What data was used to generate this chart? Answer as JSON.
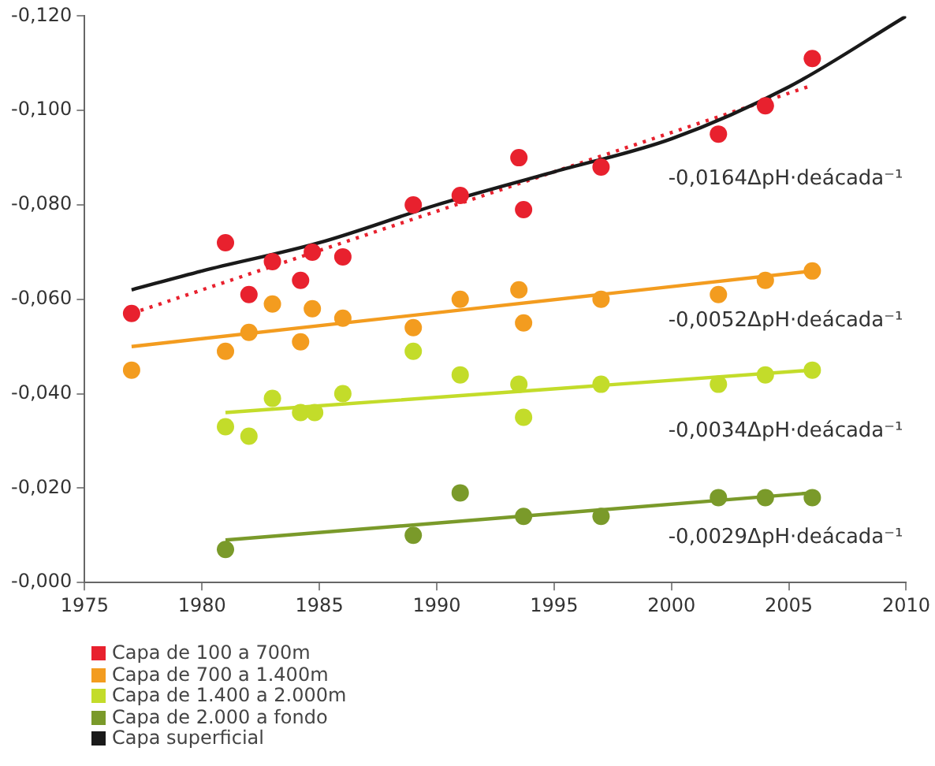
{
  "chart_data": {
    "type": "scatter",
    "xlim": [
      1975,
      2010
    ],
    "xticks": [
      1975,
      1980,
      1985,
      1990,
      1995,
      2000,
      2005,
      2010
    ],
    "ylim": [
      0,
      -0.12
    ],
    "yticks": [
      {
        "value": 0,
        "label": "-0,000"
      },
      {
        "value": -0.02,
        "label": "-0,020"
      },
      {
        "value": -0.04,
        "label": "-0,040"
      },
      {
        "value": -0.06,
        "label": "-0,060"
      },
      {
        "value": -0.08,
        "label": "-0,080"
      },
      {
        "value": -0.1,
        "label": "-0,100"
      },
      {
        "value": -0.12,
        "label": "-0,120"
      }
    ],
    "grid": false,
    "legend": "bottom left",
    "marker": "circle",
    "series": [
      {
        "name": "Capa de 100 a 700m",
        "color": "#e8212e",
        "x": [
          1977,
          1981,
          1982,
          1983,
          1984.2,
          1984.7,
          1986,
          1989,
          1991,
          1993.5,
          1993.7,
          1997,
          2002,
          2004,
          2006
        ],
        "values": [
          -0.057,
          -0.072,
          -0.061,
          -0.068,
          -0.064,
          -0.07,
          -0.069,
          -0.08,
          -0.082,
          -0.09,
          -0.079,
          -0.088,
          -0.095,
          -0.101,
          -0.111
        ]
      },
      {
        "name": "Capa de 700 a 1.400m",
        "color": "#f39c1f",
        "x": [
          1977,
          1981,
          1982,
          1983,
          1984.2,
          1984.7,
          1986,
          1989,
          1991,
          1993.5,
          1993.7,
          1997,
          2002,
          2004,
          2006
        ],
        "values": [
          -0.045,
          -0.049,
          -0.053,
          -0.059,
          -0.051,
          -0.058,
          -0.056,
          -0.054,
          -0.06,
          -0.062,
          -0.055,
          -0.06,
          -0.061,
          -0.064,
          -0.066
        ]
      },
      {
        "name": "Capa de 1.400 a 2.000m",
        "color": "#c3dc2a",
        "x": [
          1981,
          1982,
          1983,
          1984.2,
          1984.8,
          1986,
          1989,
          1991,
          1993.5,
          1993.7,
          1997,
          2002,
          2004,
          2006
        ],
        "values": [
          -0.033,
          -0.031,
          -0.039,
          -0.036,
          -0.036,
          -0.04,
          -0.049,
          -0.044,
          -0.042,
          -0.035,
          -0.042,
          -0.042,
          -0.044,
          -0.045
        ]
      },
      {
        "name": "Capa de 2.000 a fondo",
        "color": "#7a9a2a",
        "x": [
          1981,
          1989,
          1991,
          1993.7,
          1997,
          2002,
          2004,
          2006
        ],
        "values": [
          -0.007,
          -0.01,
          -0.019,
          -0.014,
          -0.014,
          -0.018,
          -0.018,
          -0.018
        ]
      },
      {
        "name": "Capa superficial",
        "type": "line",
        "marker": "none",
        "color": "#1a1a1a",
        "x": [
          1977,
          1980,
          1985,
          1990,
          1995,
          2000,
          2005,
          2010
        ],
        "values": [
          -0.062,
          -0.066,
          -0.072,
          -0.08,
          -0.087,
          -0.094,
          -0.105,
          -0.12
        ]
      },
      {
        "type": "line",
        "marker": "none",
        "line_style": "dotted",
        "color": "#e8212e",
        "x": [
          1977,
          2005.8
        ],
        "values": [
          -0.057,
          -0.105
        ]
      },
      {
        "type": "line",
        "marker": "none",
        "color": "#f39c1f",
        "x": [
          1977,
          2006
        ],
        "values": [
          -0.05,
          -0.066
        ]
      },
      {
        "type": "line",
        "marker": "none",
        "color": "#c3dc2a",
        "x": [
          1981,
          2006
        ],
        "values": [
          -0.036,
          -0.045
        ]
      },
      {
        "type": "line",
        "marker": "none",
        "color": "#7a9a2a",
        "x": [
          1981,
          2006
        ],
        "values": [
          -0.009,
          -0.019
        ]
      }
    ],
    "annotations": [
      "-0,0164ΔpH·deácada⁻¹",
      "-0,0052ΔpH·deácada⁻¹",
      "-0,0034ΔpH·deácada⁻¹",
      "-0,0029ΔpH·deácada⁻¹"
    ]
  }
}
